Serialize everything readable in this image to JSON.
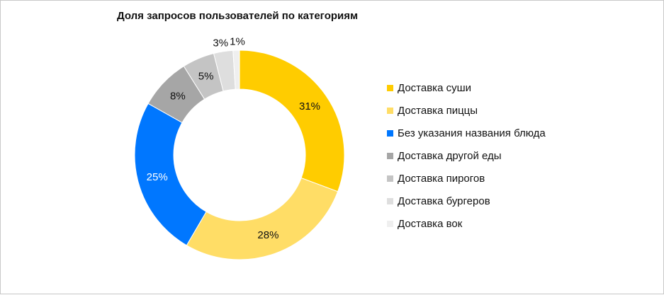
{
  "chart_data": {
    "type": "pie",
    "subtype": "donut",
    "title": "Доля запросов пользователей по категориям",
    "legend_position": "right",
    "slices": [
      {
        "name": "Доставка суши",
        "value": 31,
        "label": "31%",
        "color": "#FFCC00",
        "label_color": "#111111"
      },
      {
        "name": "Доставка пиццы",
        "value": 28,
        "label": "28%",
        "color": "#FFDD66",
        "label_color": "#111111"
      },
      {
        "name": "Без указания названия блюда",
        "value": 25,
        "label": "25%",
        "color": "#0077FF",
        "label_color": "#ffffff"
      },
      {
        "name": "Доставка другой еды",
        "value": 8,
        "label": "8%",
        "color": "#A6A6A6",
        "label_color": "#111111"
      },
      {
        "name": "Доставка пирогов",
        "value": 5,
        "label": "5%",
        "color": "#C4C4C4",
        "label_color": "#111111"
      },
      {
        "name": "Доставка бургеров",
        "value": 3,
        "label": "3%",
        "color": "#DEDEDE",
        "label_color": "#111111"
      },
      {
        "name": "Доставка вок",
        "value": 1,
        "label": "1%",
        "color": "#EFEFEF",
        "label_color": "#111111"
      }
    ]
  }
}
